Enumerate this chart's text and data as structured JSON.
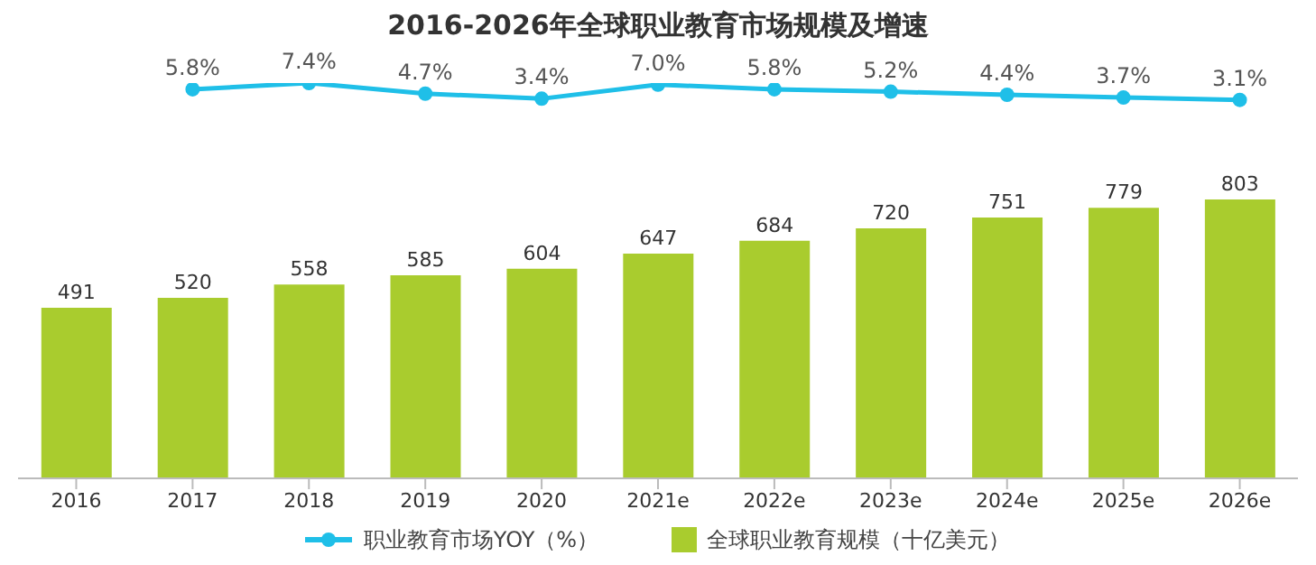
{
  "chart_data": [
    {
      "type": "line",
      "title": "2016-2026年全球职业教育市场规模及增速",
      "categories": [
        null,
        null,
        null,
        null,
        null,
        null,
        null,
        null,
        null,
        null,
        null
      ],
      "series": [
        {
          "name": "职业教育市场YOY（%）",
          "color": "#1fbfe8",
          "values": [
            null,
            5.8,
            7.4,
            4.7,
            3.4,
            7.0,
            5.8,
            5.2,
            4.4,
            3.7,
            3.1
          ],
          "value_labels": [
            null,
            "5.8%",
            "7.4%",
            "4.7%",
            "3.4%",
            "7.0%",
            "5.8%",
            "5.2%",
            "4.4%",
            "3.7%",
            "3.1%"
          ]
        }
      ],
      "marker": "circle",
      "tick_labels": false,
      "legend": "bottom",
      "grid": false
    },
    {
      "type": "bar",
      "categories": [
        "2016",
        "2017",
        "2018",
        "2019",
        "2020",
        "2021e",
        "2022e",
        "2023e",
        "2024e",
        "2025e",
        "2026e"
      ],
      "series": [
        {
          "name": "全球职业教育规模（十亿美元）",
          "color": "#a9cc2e",
          "values": [
            491,
            520,
            558,
            585,
            604,
            647,
            684,
            720,
            751,
            779,
            803
          ]
        }
      ],
      "tick_labels": "x",
      "data_labels": true,
      "legend": "bottom",
      "grid": false
    }
  ]
}
